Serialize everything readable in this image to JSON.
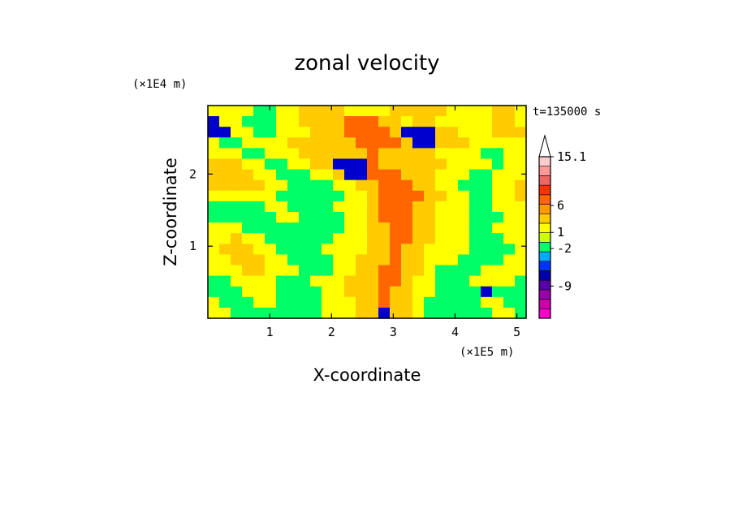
{
  "chart_data": {
    "type": "heatmap",
    "title": "zonal velocity",
    "time_label": "t=135000 s",
    "xlabel": "X-coordinate",
    "ylabel": "Z-coordinate",
    "x_scale_label": "(×1E5 m)",
    "y_scale_label": "(×1E4 m)",
    "x_ticks": [
      "1",
      "2",
      "3",
      "4",
      "5"
    ],
    "x_tick_values": [
      1,
      2,
      3,
      4,
      5
    ],
    "y_ticks": [
      "1",
      "2"
    ],
    "y_tick_values": [
      1,
      2
    ],
    "xlim": [
      0,
      5.15
    ],
    "ylim": [
      0,
      2.95
    ],
    "colorbar": {
      "levels": [
        "#ff00cc",
        "#cc00aa",
        "#9900aa",
        "#5500aa",
        "#0000aa",
        "#0033ff",
        "#00aaff",
        "#00ff66",
        "#ccff00",
        "#ffff00",
        "#ffcc00",
        "#ff9900",
        "#ff6600",
        "#ff3300",
        "#ee6666",
        "#ff9999",
        "#ffcccc"
      ],
      "labels": [
        "15.1",
        "6",
        "1",
        "-2",
        "-9"
      ],
      "label_values": [
        15.1,
        6,
        1,
        -2,
        -9
      ],
      "min": -15,
      "max": 15.1
    },
    "pattern": [
      "AAAAZZAABBBBAAAABBBBBAAAABBA",
      "DAAZZZAABBBBCCCBBABBAAAAABBA",
      "DDAAZZAAABBBCCCCBDDDBBAAABBB",
      "AZZAAAABBBBBBCCCCBDDBBBAAAAA",
      "AAAZZAAABBBBBBCBBBBBAAAAZZAA",
      "BBBAAZZAABBDDDCBBBBBBAAAAZAA",
      "BBBBAAZZZAABDDCCCBBBAAAZZAAA",
      "BBBBBAAZZZZAABBCCCBBAAZZZAAB",
      "AAAAAAZZZZZZAABCCCCBBAAZZAAB",
      "ZZZZZAAZZZZAAABCCCBBAAAZZAAA",
      "ZZZZZZAAZZZZAABCCCBBAAAZZZAA",
      "AAAZZZZZZZZZAABBCCBBAAAZZAAA",
      "AABAAZZZZZZAAABBCCBBAAAZZZAA",
      "ABBBAAZZZZAAAABBCBBAAAAZZZZA",
      "AABBBAAZZZZAABBBCBBAAAZZZZAA",
      "AAABBAAAZZZAABBCCBBAZZZZAAAA",
      "ZZAAAAZZZAAABBBCCBAAZZZAAAAZ",
      "ZZZAAAZZZZAABBBCBBAAZZZZDZZZ",
      "AZZZAAZZZZAAABBCBBAZZZZZAAZZ",
      "AAZZZZZZZZAAABBDBBAZZZZZZAAZ"
    ]
  }
}
